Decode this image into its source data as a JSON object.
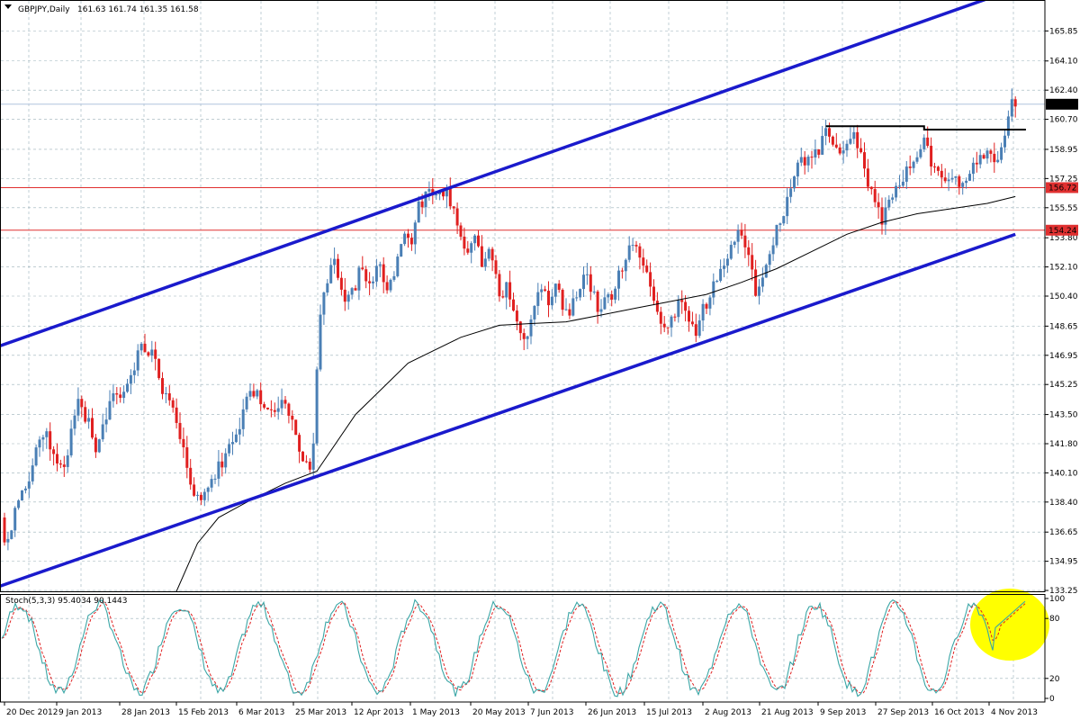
{
  "header": {
    "symbol": "GBPJPY,Daily",
    "ohlc": "161.63 161.74 161.35 161.58"
  },
  "chart_data": {
    "type": "candlestick",
    "symbol": "GBPJPY",
    "timeframe": "Daily",
    "ylim": [
      133.2,
      167.6
    ],
    "y_ticks": [
      "165.85",
      "164.10",
      "162.40",
      "160.70",
      "158.95",
      "157.25",
      "155.55",
      "153.80",
      "152.10",
      "150.40",
      "148.65",
      "146.95",
      "145.25",
      "143.50",
      "141.80",
      "140.10",
      "138.40",
      "136.65",
      "134.95",
      "133.25"
    ],
    "x_ticks": [
      "20 Dec 2012",
      "9 Jan 2013",
      "28 Jan 2013",
      "15 Feb 2013",
      "6 Mar 2013",
      "25 Mar 2013",
      "12 Apr 2013",
      "1 May 2013",
      "20 May 2013",
      "7 Jun 2013",
      "26 Jun 2013",
      "15 Jul 2013",
      "2 Aug 2013",
      "21 Aug 2013",
      "9 Sep 2013",
      "27 Sep 2013",
      "16 Oct 2013",
      "4 Nov 2013"
    ],
    "price_path": [
      [
        0,
        137.5
      ],
      [
        3,
        136.0
      ],
      [
        10,
        138.5
      ],
      [
        18,
        140.5
      ],
      [
        24,
        142.5
      ],
      [
        30,
        141.5
      ],
      [
        35,
        140.0
      ],
      [
        40,
        142.5
      ],
      [
        44,
        144.0
      ],
      [
        50,
        143.0
      ],
      [
        54,
        141.5
      ],
      [
        60,
        143.5
      ],
      [
        65,
        145.0
      ],
      [
        70,
        144.5
      ],
      [
        75,
        146.0
      ],
      [
        80,
        147.5
      ],
      [
        86,
        147.0
      ],
      [
        92,
        145.0
      ],
      [
        98,
        143.5
      ],
      [
        104,
        141.5
      ],
      [
        108,
        139.5
      ],
      [
        114,
        138.2
      ],
      [
        118,
        139.5
      ],
      [
        124,
        140.5
      ],
      [
        130,
        141.5
      ],
      [
        136,
        143.0
      ],
      [
        140,
        144.5
      ],
      [
        146,
        145.0
      ],
      [
        150,
        144.0
      ],
      [
        156,
        143.5
      ],
      [
        160,
        144.5
      ],
      [
        164,
        143.5
      ],
      [
        168,
        142.0
      ],
      [
        172,
        141.0
      ],
      [
        176,
        140.3
      ],
      [
        178,
        142.0
      ],
      [
        180,
        146.0
      ],
      [
        182,
        149.0
      ],
      [
        185,
        151.0
      ],
      [
        190,
        152.5
      ],
      [
        195,
        150.0
      ],
      [
        200,
        150.5
      ],
      [
        205,
        152.0
      ],
      [
        210,
        151.0
      ],
      [
        215,
        152.5
      ],
      [
        220,
        150.5
      ],
      [
        225,
        152.0
      ],
      [
        230,
        154.0
      ],
      [
        234,
        153.0
      ],
      [
        238,
        155.5
      ],
      [
        242,
        156.5
      ],
      [
        246,
        156.0
      ],
      [
        250,
        156.6
      ],
      [
        254,
        156.5
      ],
      [
        258,
        155.5
      ],
      [
        262,
        154.0
      ],
      [
        266,
        153.2
      ],
      [
        270,
        153.5
      ],
      [
        274,
        152.5
      ],
      [
        278,
        153.0
      ],
      [
        282,
        152.0
      ],
      [
        285,
        149.5
      ],
      [
        288,
        151.0
      ],
      [
        292,
        150.0
      ],
      [
        296,
        148.5
      ],
      [
        300,
        148.0
      ],
      [
        304,
        149.5
      ],
      [
        308,
        151.0
      ],
      [
        312,
        150.0
      ],
      [
        316,
        151.0
      ],
      [
        320,
        150.0
      ],
      [
        324,
        149.5
      ],
      [
        328,
        150.5
      ],
      [
        332,
        152.0
      ],
      [
        336,
        151.0
      ],
      [
        340,
        149.5
      ],
      [
        344,
        150.0
      ],
      [
        348,
        150.5
      ],
      [
        352,
        151.5
      ],
      [
        356,
        152.5
      ],
      [
        360,
        153.5
      ],
      [
        364,
        153.0
      ],
      [
        368,
        152.0
      ],
      [
        372,
        150.5
      ],
      [
        376,
        149.0
      ],
      [
        380,
        148.5
      ],
      [
        384,
        149.5
      ],
      [
        388,
        150.5
      ],
      [
        392,
        149.0
      ],
      [
        396,
        148.5
      ],
      [
        400,
        149.5
      ],
      [
        404,
        150.5
      ],
      [
        408,
        151.5
      ],
      [
        412,
        152.5
      ],
      [
        416,
        153.0
      ],
      [
        420,
        154.0
      ],
      [
        424,
        153.5
      ],
      [
        428,
        152.0
      ],
      [
        430,
        150.5
      ],
      [
        434,
        151.5
      ],
      [
        438,
        153.0
      ],
      [
        442,
        154.5
      ],
      [
        446,
        155.5
      ],
      [
        450,
        157.0
      ],
      [
        454,
        158.5
      ],
      [
        458,
        158.0
      ],
      [
        462,
        158.5
      ],
      [
        466,
        159.0
      ],
      [
        470,
        160.2
      ],
      [
        474,
        159.5
      ],
      [
        478,
        158.5
      ],
      [
        482,
        159.0
      ],
      [
        486,
        160.2
      ],
      [
        490,
        158.5
      ],
      [
        494,
        157.0
      ],
      [
        498,
        155.8
      ],
      [
        502,
        155.0
      ],
      [
        506,
        156.0
      ],
      [
        510,
        157.0
      ],
      [
        514,
        157.5
      ],
      [
        518,
        158.0
      ],
      [
        522,
        158.5
      ],
      [
        526,
        159.5
      ],
      [
        530,
        158.0
      ],
      [
        534,
        157.5
      ],
      [
        538,
        157.0
      ],
      [
        542,
        157.5
      ],
      [
        546,
        157.0
      ],
      [
        550,
        157.5
      ],
      [
        554,
        158.0
      ],
      [
        558,
        158.5
      ],
      [
        562,
        159.0
      ],
      [
        566,
        158.5
      ],
      [
        570,
        159.0
      ],
      [
        574,
        161.0
      ],
      [
        576,
        161.6
      ]
    ],
    "ma_path": [
      [
        98,
        133.2
      ],
      [
        110,
        136.0
      ],
      [
        122,
        137.5
      ],
      [
        140,
        138.5
      ],
      [
        160,
        139.5
      ],
      [
        178,
        140.2
      ],
      [
        200,
        143.5
      ],
      [
        230,
        146.5
      ],
      [
        260,
        148.0
      ],
      [
        282,
        148.7
      ],
      [
        300,
        148.8
      ],
      [
        320,
        148.9
      ],
      [
        340,
        149.3
      ],
      [
        360,
        149.7
      ],
      [
        380,
        150.1
      ],
      [
        400,
        150.5
      ],
      [
        420,
        151.2
      ],
      [
        440,
        152.0
      ],
      [
        460,
        153.0
      ],
      [
        480,
        154.0
      ],
      [
        500,
        154.7
      ],
      [
        520,
        155.2
      ],
      [
        540,
        155.5
      ],
      [
        560,
        155.8
      ],
      [
        576,
        156.2
      ]
    ],
    "channel_upper": {
      "from": [
        0,
        147.5
      ],
      "to": [
        576,
        168.3
      ]
    },
    "channel_lower": {
      "from": [
        0,
        133.5
      ],
      "to": [
        576,
        154.0
      ]
    },
    "resistance_line": {
      "points": [
        [
          468,
          160.3
        ],
        [
          524,
          160.3
        ],
        [
          524,
          160.1
        ],
        [
          582,
          160.1
        ]
      ]
    },
    "horizontal_levels": [
      {
        "value": 161.58,
        "label": "161.58",
        "color": "#b0c4de",
        "label_bg": "#000000"
      },
      {
        "value": 156.72,
        "label": "156.72",
        "color": "#e03030",
        "label_bg": "#e03030"
      },
      {
        "value": 154.24,
        "label": "154.24",
        "color": "#e03030",
        "label_bg": "#e03030"
      }
    ],
    "colors": {
      "bull": "#4a7fb5",
      "bear": "#e02020",
      "ma": "#000000",
      "channel": "#1a1acc",
      "stoch_main": "#3aa6a6",
      "stoch_signal": "#e02020",
      "highlight": "#ffff00"
    },
    "stochastic": {
      "label": "Stoch(5,3,3) 95.4034 90.1443",
      "params": "5,3,3",
      "main": 95.4034,
      "signal": 90.1443,
      "ylim": [
        0,
        100
      ],
      "y_ticks": [
        "100",
        "80",
        "20",
        "0"
      ],
      "levels": [
        80,
        20
      ]
    }
  }
}
